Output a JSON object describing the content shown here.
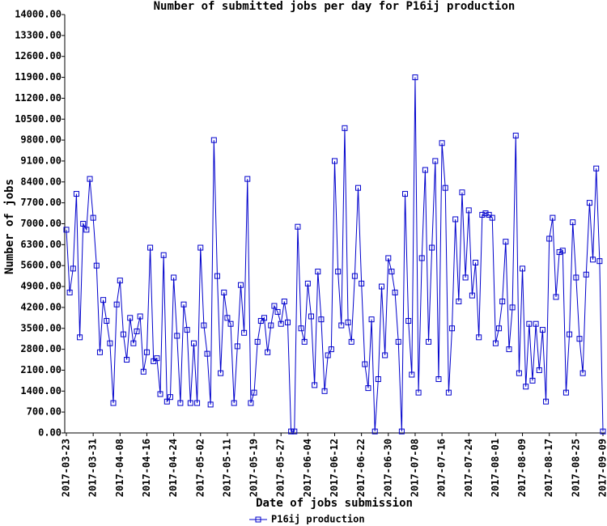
{
  "chart_data": {
    "type": "line",
    "title": "Number of submitted jobs per day for P16ij production",
    "x_label": "Date of jobs submission",
    "y_label": "Number of jobs",
    "color": "#0000cc",
    "grid": false,
    "legend": "bottom",
    "categories": [
      "2017-03-23",
      null,
      null,
      null,
      null,
      null,
      null,
      null,
      "2017-03-31",
      null,
      null,
      null,
      null,
      null,
      null,
      null,
      "2017-04-08",
      null,
      null,
      null,
      null,
      null,
      null,
      null,
      "2017-04-16",
      null,
      null,
      null,
      null,
      null,
      null,
      null,
      "2017-04-24",
      null,
      null,
      null,
      null,
      null,
      null,
      null,
      "2017-05-02",
      null,
      null,
      null,
      null,
      null,
      null,
      null,
      "2017-05-11",
      null,
      null,
      null,
      null,
      null,
      null,
      null,
      "2017-05-19",
      null,
      null,
      null,
      null,
      null,
      null,
      null,
      "2017-05-27",
      null,
      null,
      null,
      null,
      null,
      null,
      null,
      "2017-06-04",
      null,
      null,
      null,
      null,
      null,
      null,
      null,
      "2017-06-12",
      null,
      null,
      null,
      null,
      null,
      null,
      null,
      "2017-06-22",
      null,
      null,
      null,
      null,
      null,
      null,
      null,
      "2017-06-30",
      null,
      null,
      null,
      null,
      null,
      null,
      null,
      "2017-07-08",
      null,
      null,
      null,
      null,
      null,
      null,
      null,
      "2017-07-16",
      null,
      null,
      null,
      null,
      null,
      null,
      null,
      "2017-07-24",
      null,
      null,
      null,
      null,
      null,
      null,
      null,
      "2017-08-01",
      null,
      null,
      null,
      null,
      null,
      null,
      null,
      "2017-08-09",
      null,
      null,
      null,
      null,
      null,
      null,
      null,
      "2017-08-17",
      null,
      null,
      null,
      null,
      null,
      null,
      null,
      "2017-08-25",
      null,
      null,
      null,
      null,
      null,
      null,
      null,
      "2017-09-09"
    ],
    "series": [
      {
        "name": "P16ij production",
        "color": "#0000cc",
        "values": [
          6800,
          4700,
          5500,
          8000,
          3200,
          7000,
          6800,
          8500,
          7200,
          5600,
          2700,
          4450,
          3750,
          3000,
          1000,
          4300,
          5100,
          3300,
          2450,
          3850,
          3000,
          3400,
          3900,
          2050,
          2700,
          6200,
          2400,
          2500,
          1300,
          5950,
          1050,
          1200,
          5200,
          3250,
          1000,
          4300,
          3450,
          1000,
          3000,
          1000,
          6200,
          3600,
          2650,
          950,
          9800,
          5250,
          2000,
          4700,
          3850,
          3650,
          1000,
          2900,
          4950,
          3350,
          8500,
          1000,
          1350,
          3050,
          3750,
          3850,
          2700,
          3600,
          4250,
          4050,
          3650,
          4400,
          3700,
          50,
          50,
          6900,
          3500,
          3050,
          5000,
          3900,
          1600,
          5400,
          3800,
          1400,
          2600,
          2800,
          9100,
          5400,
          3600,
          10200,
          3700,
          3050,
          5250,
          8200,
          5000,
          2300,
          1500,
          3800,
          50,
          1800,
          4900,
          2600,
          5850,
          5400,
          4700,
          3050,
          50,
          8000,
          3750,
          1950,
          11900,
          1350,
          5850,
          8800,
          3050,
          6200,
          9100,
          1800,
          9700,
          8200,
          1350,
          3500,
          7150,
          4400,
          8050,
          5200,
          7450,
          4600,
          5700,
          3200,
          7300,
          7350,
          7300,
          7200,
          3000,
          3500,
          4400,
          6400,
          2800,
          4200,
          9950,
          2000,
          5500,
          1550,
          3650,
          1750,
          3650,
          2100,
          3450,
          1050,
          6500,
          7200,
          4550,
          6050,
          6100,
          1350,
          3300,
          7050,
          5200,
          3150,
          2000,
          5300,
          7700,
          5800,
          8850,
          5750,
          50
        ]
      }
    ],
    "ylim": [
      0,
      14000
    ],
    "yticks": [
      {
        "value": 0,
        "label": "0.00"
      },
      {
        "value": 700,
        "label": "700.00"
      },
      {
        "value": 1400,
        "label": "1400.00"
      },
      {
        "value": 2100,
        "label": "2100.00"
      },
      {
        "value": 2800,
        "label": "2800.00"
      },
      {
        "value": 3500,
        "label": "3500.00"
      },
      {
        "value": 4200,
        "label": "4200.00"
      },
      {
        "value": 4900,
        "label": "4900.00"
      },
      {
        "value": 5600,
        "label": "5600.00"
      },
      {
        "value": 6300,
        "label": "6300.00"
      },
      {
        "value": 7000,
        "label": "7000.00"
      },
      {
        "value": 7700,
        "label": "7700.00"
      },
      {
        "value": 8400,
        "label": "8400.00"
      },
      {
        "value": 9100,
        "label": "9100.00"
      },
      {
        "value": 9800,
        "label": "9800.00"
      },
      {
        "value": 10500,
        "label": "10500.00"
      },
      {
        "value": 11200,
        "label": "11200.00"
      },
      {
        "value": 11900,
        "label": "11900.00"
      },
      {
        "value": 12600,
        "label": "12600.00"
      },
      {
        "value": 13300,
        "label": "13300.00"
      },
      {
        "value": 14000,
        "label": "14000.00"
      }
    ]
  }
}
